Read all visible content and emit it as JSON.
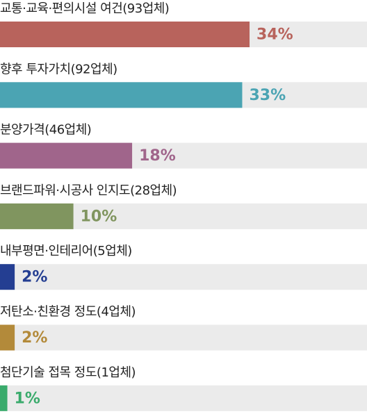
{
  "chart_data": {
    "type": "bar",
    "orientation": "horizontal",
    "categories": [
      "교통·교육·편의시설 여건(93업체)",
      "향후 투자가치(92업체)",
      "분양가격(46업체)",
      "브랜드파워·시공사 인지도(28업체)",
      "내부평면·인테리어(5업체)",
      "저탄소·친환경 정도(4업체)",
      "첨단기술 접목 정도(1업체)"
    ],
    "values": [
      34,
      33,
      18,
      10,
      2,
      2,
      1
    ],
    "value_labels": [
      "34%",
      "33%",
      "18%",
      "10%",
      "2%",
      "2%",
      "1%"
    ],
    "colors": [
      "#b8635c",
      "#4ba4b3",
      "#a0658b",
      "#80955f",
      "#243e92",
      "#b38a3a",
      "#3aab6c"
    ],
    "xlim": [
      0,
      50
    ]
  }
}
